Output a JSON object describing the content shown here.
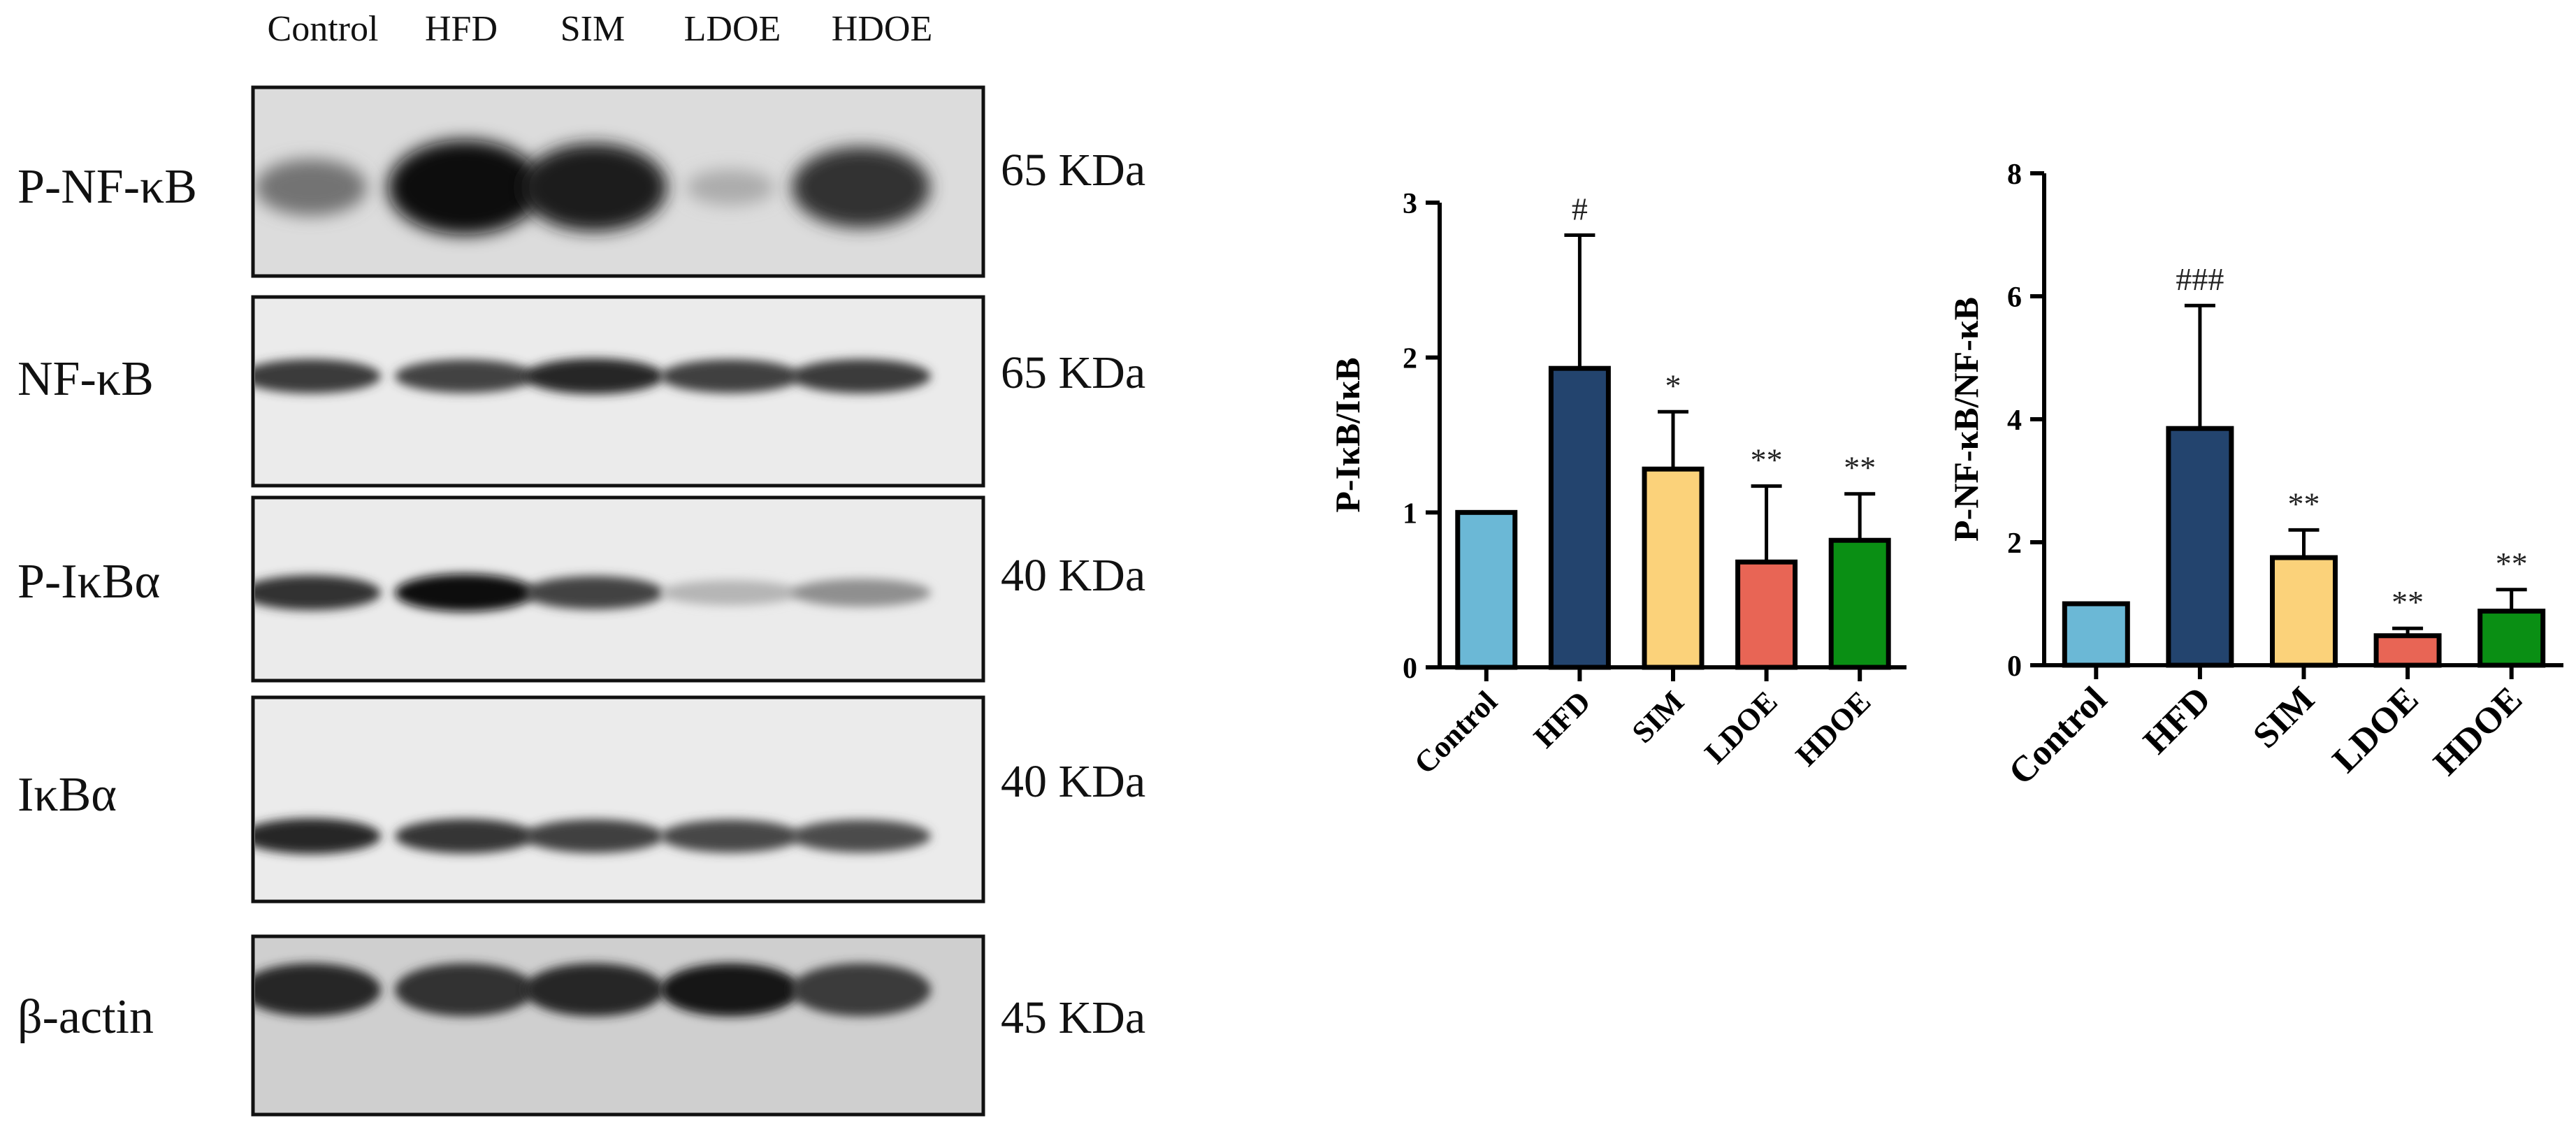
{
  "blot": {
    "lane_labels": [
      "Control",
      "HFD",
      "SIM",
      "LDOE",
      "HDOE"
    ],
    "rows": [
      {
        "protein": "P-NF-κB",
        "mw": "65 KDa",
        "intensity": [
          0.45,
          1.0,
          0.9,
          0.15,
          0.8
        ],
        "shape": "blob"
      },
      {
        "protein": "NF-κB",
        "mw": "65 KDa",
        "intensity": [
          0.75,
          0.7,
          0.85,
          0.72,
          0.75
        ],
        "shape": "band"
      },
      {
        "protein": "P-IκBα",
        "mw": "40 KDa",
        "intensity": [
          0.8,
          1.0,
          0.7,
          0.1,
          0.3
        ],
        "shape": "band"
      },
      {
        "protein": "IκBα",
        "mw": "40 KDa",
        "intensity": [
          0.85,
          0.78,
          0.72,
          0.68,
          0.66
        ],
        "shape": "band"
      },
      {
        "protein": "β-actin",
        "mw": "45 KDa",
        "intensity": [
          0.85,
          0.8,
          0.85,
          0.95,
          0.75
        ],
        "shape": "band"
      }
    ]
  },
  "colors": {
    "Control": "#6bb8d6",
    "HFD": "#23446e",
    "SIM": "#fbd27a",
    "LDOE": "#e86555",
    "HDOE": "#0a8f14"
  },
  "chart_data": [
    {
      "type": "bar",
      "categories": [
        "Control",
        "HFD",
        "SIM",
        "LDOE",
        "HDOE"
      ],
      "values": [
        1.0,
        1.93,
        1.28,
        0.68,
        0.82
      ],
      "error": [
        0,
        0.86,
        0.37,
        0.49,
        0.3
      ],
      "annotations": [
        "",
        "#",
        "*",
        "**",
        "**"
      ],
      "ylabel": "P-IκB/IκB",
      "ylim": [
        0,
        3
      ],
      "yticks": [
        0,
        1,
        2,
        3
      ]
    },
    {
      "type": "bar",
      "categories": [
        "Control",
        "HFD",
        "SIM",
        "LDOE",
        "HDOE"
      ],
      "values": [
        1.0,
        3.85,
        1.75,
        0.48,
        0.88
      ],
      "error": [
        0,
        2.0,
        0.45,
        0.12,
        0.35
      ],
      "annotations": [
        "",
        "###",
        "**",
        "**",
        "**"
      ],
      "ylabel": "P-NF-κB/NF-κB",
      "ylim": [
        0,
        8
      ],
      "yticks": [
        0,
        2,
        4,
        6,
        8
      ]
    }
  ]
}
